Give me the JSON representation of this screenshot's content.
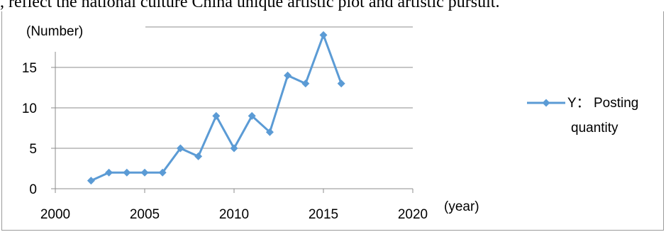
{
  "caption_text": ", reflect the national culture China unique artistic plot and artistic pursuit.",
  "chart_data": {
    "type": "line",
    "title": "",
    "xlabel": "(year)",
    "ylabel": "(Number)",
    "xlim": [
      2000,
      2020
    ],
    "ylim": [
      0,
      20
    ],
    "x_ticks": [
      2000,
      2005,
      2010,
      2015,
      2020
    ],
    "y_ticks": [
      0,
      5,
      10,
      15
    ],
    "grid": "horizontal",
    "legend_position": "right",
    "series": [
      {
        "name": "Y：  Posting quantity",
        "legend_lines": [
          "Y：  Posting",
          "quantity"
        ],
        "color": "#5b9bd5",
        "marker": "diamond",
        "x": [
          2002,
          2003,
          2004,
          2005,
          2006,
          2007,
          2008,
          2009,
          2010,
          2011,
          2012,
          2013,
          2014,
          2015,
          2016
        ],
        "y": [
          1,
          2,
          2,
          2,
          2,
          5,
          4,
          9,
          5,
          9,
          7,
          14,
          13,
          19,
          13
        ]
      }
    ]
  }
}
